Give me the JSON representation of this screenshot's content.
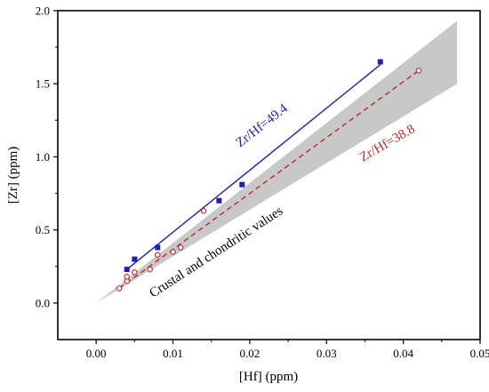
{
  "chart_data": {
    "type": "scatter",
    "xlabel": "[Hf] (ppm)",
    "ylabel": "[Zr] (ppm)",
    "xlim": [
      -0.005,
      0.05
    ],
    "ylim": [
      -0.25,
      2.0
    ],
    "x_ticks": [
      "0.00",
      "0.01",
      "0.02",
      "0.03",
      "0.04",
      "0.05"
    ],
    "y_ticks": [
      "0.0",
      "0.5",
      "1.0",
      "1.5",
      "2.0"
    ],
    "grid": false,
    "colors": {
      "blue": "#1f1fb4",
      "red": "#c0282b",
      "band": "#c8c8c8"
    },
    "series": [
      {
        "marker": "filled-square",
        "color": "#1f1fb4",
        "points": [
          {
            "x": 0.004,
            "y": 0.23
          },
          {
            "x": 0.005,
            "y": 0.3
          },
          {
            "x": 0.008,
            "y": 0.38
          },
          {
            "x": 0.016,
            "y": 0.7
          },
          {
            "x": 0.019,
            "y": 0.81
          },
          {
            "x": 0.037,
            "y": 1.65
          }
        ],
        "fit_line": {
          "x": [
            0.004,
            0.037
          ],
          "y": [
            0.23,
            1.63
          ],
          "style": "solid"
        }
      },
      {
        "marker": "open-circle",
        "color": "#c0282b",
        "points": [
          {
            "x": 0.003,
            "y": 0.1
          },
          {
            "x": 0.004,
            "y": 0.15
          },
          {
            "x": 0.004,
            "y": 0.18
          },
          {
            "x": 0.005,
            "y": 0.21
          },
          {
            "x": 0.007,
            "y": 0.23
          },
          {
            "x": 0.008,
            "y": 0.33
          },
          {
            "x": 0.01,
            "y": 0.35
          },
          {
            "x": 0.011,
            "y": 0.38
          },
          {
            "x": 0.014,
            "y": 0.63
          },
          {
            "x": 0.042,
            "y": 1.59
          }
        ],
        "fit_line": {
          "x": [
            0.003,
            0.042
          ],
          "y": [
            0.1,
            1.59
          ],
          "style": "dashed"
        }
      }
    ],
    "band": {
      "upper": [
        {
          "x": 0.0,
          "y": 0.0
        },
        {
          "x": 0.047,
          "y": 1.93
        }
      ],
      "lower": [
        {
          "x": 0.0,
          "y": 0.0
        },
        {
          "x": 0.047,
          "y": 1.5
        }
      ]
    },
    "annotations": [
      {
        "text": "Zr/Hf=49.4",
        "color": "#1f1fb4"
      },
      {
        "text": "Zr/Hf=38.8",
        "color": "#c0282b"
      },
      {
        "text": "Crustal and chondritic values",
        "color": "#000000"
      }
    ]
  }
}
